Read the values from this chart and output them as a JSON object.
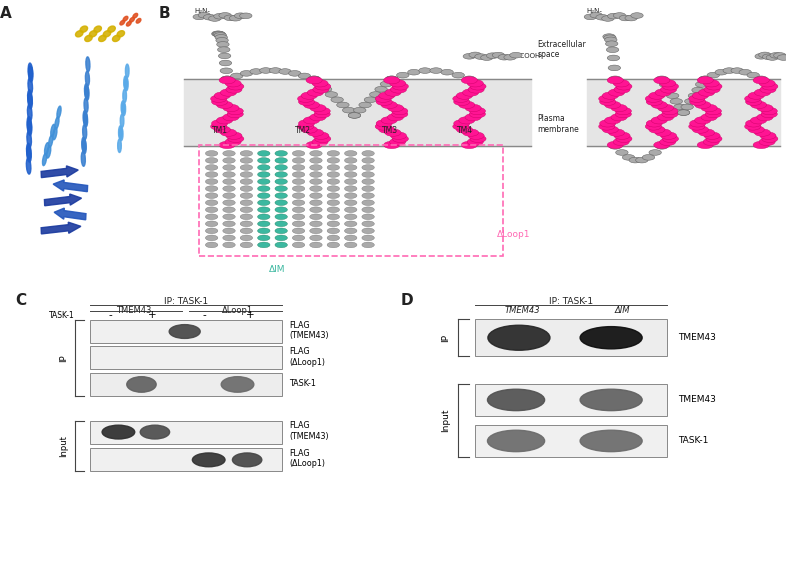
{
  "panel_labels": [
    "A",
    "B",
    "C",
    "D"
  ],
  "panel_label_fontsize": 11,
  "panel_label_fontweight": "bold",
  "background_color": "#ffffff",
  "membrane_color": "#e8e8e8",
  "membrane_border_color": "#555555",
  "pink_color": "#ff1493",
  "gray_circle_color": "#aaaaaa",
  "teal_color": "#3cb8a0",
  "dashed_pink": "#ff69b4",
  "text_color": "#222222",
  "extracellular_label": "Extracellular\nspace",
  "plasma_membrane_label": "Plasma\nmembrane",
  "tm_labels": [
    "TM1",
    "TM2",
    "TM3",
    "TM4"
  ],
  "delta_loop1_label": "ΔLoop1",
  "delta_im_label": "ΔIM",
  "tmem43_label": "TMEM43",
  "delta_loop1_short": "ΔLoop1",
  "task1_label": "TASK-1",
  "flag_tmem43": "FLAG\n(TMEM43)",
  "flag_dloop1": "FLAG\n(ΔLoop1)",
  "ip_label": "IP",
  "input_label": "Input",
  "delta_im_short": "ΔIM",
  "c_panel_ip_label": "IP: TASK-1",
  "d_panel_ip_label": "IP: TASK-1"
}
